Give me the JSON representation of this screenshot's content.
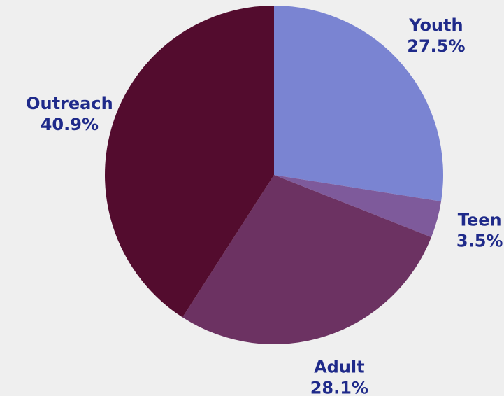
{
  "chart_data": {
    "type": "pie",
    "categories": [
      "Youth",
      "Teen",
      "Adult",
      "Outreach"
    ],
    "values": [
      27.5,
      3.5,
      28.1,
      40.9
    ],
    "value_labels": [
      "27.5%",
      "3.5%",
      "28.1%",
      "40.9%"
    ],
    "colors": [
      "#7a84d2",
      "#7e5a9b",
      "#6c3262",
      "#530c2e"
    ]
  }
}
